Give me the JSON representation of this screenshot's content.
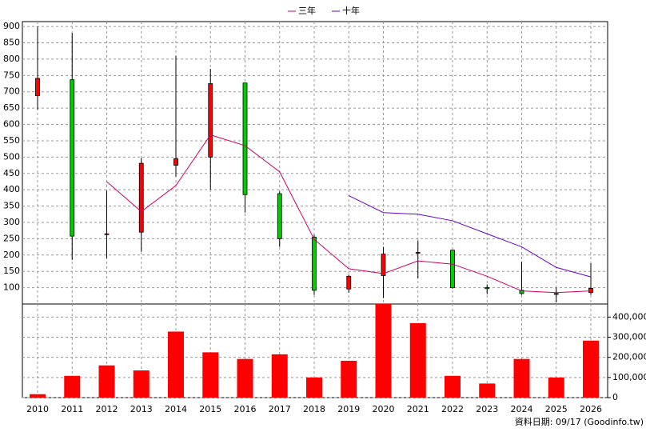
{
  "chart_data": [
    {
      "type": "candlestick",
      "categories": [
        "2010",
        "2011",
        "2012",
        "2013",
        "2014",
        "2015",
        "2016",
        "2017",
        "2018",
        "2019",
        "2020",
        "2021",
        "2022",
        "2023",
        "2024",
        "2025",
        "2026"
      ],
      "open": [
        688,
        737,
        265,
        270,
        475,
        500,
        727,
        388,
        255,
        96,
        137,
        208,
        215,
        100,
        92,
        82,
        85
      ],
      "high": [
        900,
        880,
        397,
        497,
        810,
        770,
        727,
        395,
        262,
        140,
        225,
        245,
        215,
        110,
        180,
        100,
        175
      ],
      "low": [
        645,
        185,
        190,
        210,
        440,
        400,
        330,
        225,
        78,
        85,
        68,
        128,
        97,
        80,
        78,
        55,
        78
      ],
      "close": [
        741,
        258,
        265,
        481,
        495,
        725,
        385,
        250,
        92,
        135,
        203,
        208,
        100,
        97,
        82,
        82,
        98
      ],
      "up_color": "#ff0000",
      "down_color": "#00cc00",
      "series": [
        {
          "name": "三年",
          "color": "#cc0066",
          "values": [
            null,
            null,
            425,
            333,
            413,
            568,
            535,
            455,
            248,
            158,
            143,
            182,
            172,
            135,
            90,
            85,
            90
          ]
        },
        {
          "name": "十年",
          "color": "#6600cc",
          "values": [
            null,
            null,
            null,
            null,
            null,
            null,
            null,
            null,
            null,
            382,
            330,
            325,
            305,
            265,
            225,
            162,
            133
          ]
        }
      ],
      "ylim": [
        50,
        915
      ],
      "yticks": [
        100,
        150,
        200,
        250,
        300,
        350,
        400,
        450,
        500,
        550,
        600,
        650,
        700,
        750,
        800,
        850,
        900
      ],
      "grid": true,
      "legend": "top"
    },
    {
      "type": "bar",
      "values": [
        17000,
        108000,
        160000,
        135000,
        328000,
        225000,
        192000,
        215000,
        100000,
        183000,
        465000,
        370000,
        108000,
        70000,
        192000,
        100000,
        283000
      ],
      "color": "#ff0000",
      "ylim": [
        0,
        465000
      ],
      "yticks": [
        0,
        {
          "value": 100000,
          "label": "100,000"
        },
        {
          "value": 200000,
          "label": "200,000"
        },
        {
          "value": 300000,
          "label": "300,000"
        },
        {
          "value": 400000,
          "label": "400,000"
        }
      ],
      "grid": true
    }
  ],
  "footer": "資料日期: 09/17 (Goodinfo.tw)"
}
